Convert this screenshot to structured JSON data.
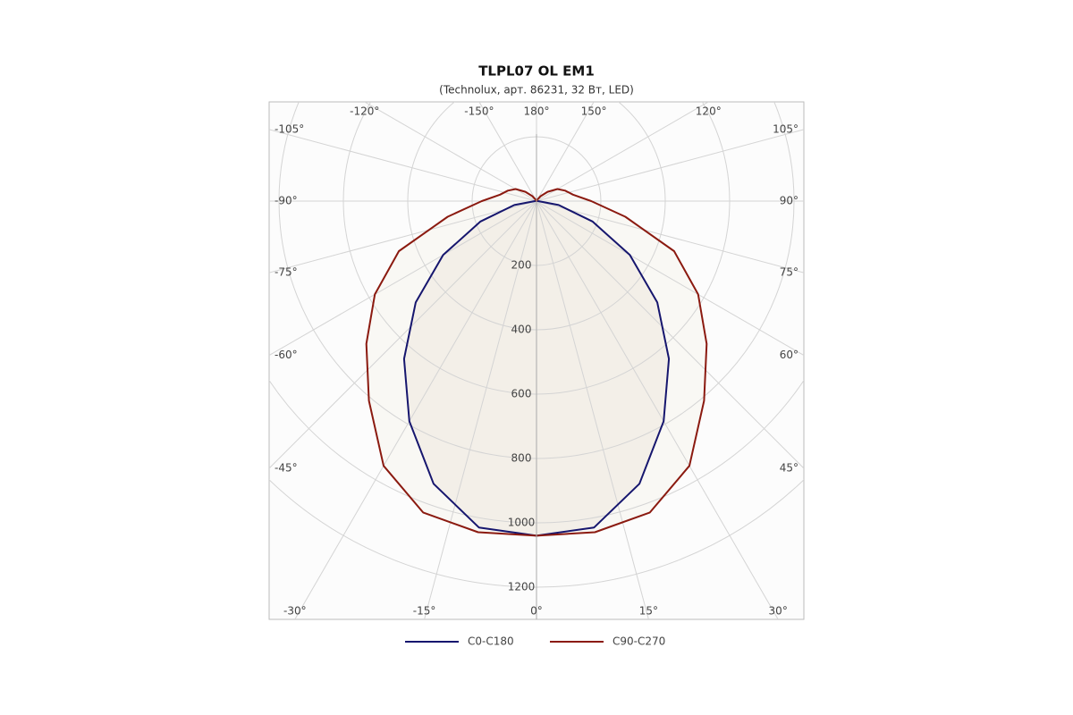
{
  "chart_data": {
    "type": "polar",
    "title": "TLPL07 OL EM1",
    "subtitle": "(Technolux, арт. 86231, 32 Вт, LED)",
    "angles": [
      -180,
      -170,
      -160,
      -150,
      -140,
      -130,
      -120,
      -110,
      -100,
      -90,
      -80,
      -70,
      -60,
      -50,
      -40,
      -30,
      -20,
      -10,
      0,
      10,
      20,
      30,
      40,
      50,
      60,
      70,
      80,
      90,
      100,
      110,
      120,
      130,
      140,
      150,
      160,
      170,
      180
    ],
    "series": [
      {
        "name": "C0-C180",
        "color": "#16166e",
        "fill": "#f3efe8",
        "values": [
          0,
          0,
          0,
          0,
          0,
          0,
          0,
          0,
          0,
          5,
          70,
          185,
          335,
          490,
          640,
          790,
          935,
          1030,
          1040,
          1030,
          935,
          790,
          640,
          490,
          335,
          185,
          70,
          5,
          0,
          0,
          0,
          0,
          0,
          0,
          0,
          0,
          0
        ]
      },
      {
        "name": "C90-C270",
        "color": "#8b1a10",
        "fill": "#f9f8f4",
        "values": [
          0,
          0,
          0,
          5,
          20,
          45,
          75,
          95,
          115,
          170,
          280,
          455,
          580,
          690,
          810,
          950,
          1030,
          1045,
          1040,
          1045,
          1030,
          950,
          810,
          690,
          580,
          455,
          280,
          170,
          115,
          95,
          75,
          45,
          20,
          5,
          0,
          0,
          0
        ]
      }
    ],
    "rlim": [
      0,
      1200
    ],
    "rticks": [
      200,
      400,
      600,
      800,
      1000,
      1200
    ],
    "angle_ticks": [
      {
        "value": -150,
        "label": "-150°"
      },
      {
        "value": -120,
        "label": "-120°"
      },
      {
        "value": -105,
        "label": "-105°"
      },
      {
        "value": -90,
        "label": "-90°"
      },
      {
        "value": -75,
        "label": "-75°"
      },
      {
        "value": -60,
        "label": "-60°"
      },
      {
        "value": -45,
        "label": "-45°"
      },
      {
        "value": -30,
        "label": "-30°"
      },
      {
        "value": -15,
        "label": "-15°"
      },
      {
        "value": 0,
        "label": "0°"
      },
      {
        "value": 15,
        "label": "15°"
      },
      {
        "value": 30,
        "label": "30°"
      },
      {
        "value": 45,
        "label": "45°"
      },
      {
        "value": 60,
        "label": "60°"
      },
      {
        "value": 75,
        "label": "75°"
      },
      {
        "value": 90,
        "label": "90°"
      },
      {
        "value": 105,
        "label": "105°"
      },
      {
        "value": 120,
        "label": "120°"
      },
      {
        "value": 150,
        "label": "150°"
      },
      {
        "value": 180,
        "label": "180°"
      }
    ],
    "grid": true
  }
}
